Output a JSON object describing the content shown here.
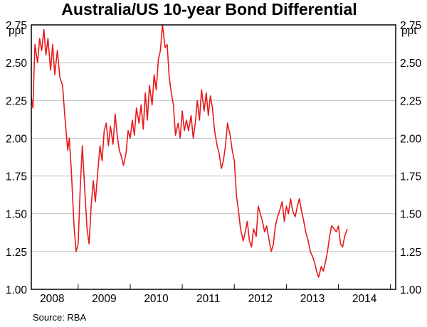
{
  "chart_data": {
    "type": "line",
    "title": "Australia/US 10-year Bond Differential",
    "unit_left": "ppt",
    "unit_right": "ppt",
    "source": "Source: RBA",
    "ylim": [
      1.0,
      2.75
    ],
    "yticks": [
      "1.00",
      "1.25",
      "1.50",
      "1.75",
      "2.00",
      "2.25",
      "2.50",
      "2.75"
    ],
    "xlim": [
      2007.6,
      2014.6
    ],
    "xticks": [
      "2008",
      "2009",
      "2010",
      "2011",
      "2012",
      "2013",
      "2014"
    ],
    "grid": true,
    "line_color": "#e8191b",
    "series": [
      {
        "x": [
          2007.6,
          2007.63,
          2007.67,
          2007.72,
          2007.76,
          2007.8,
          2007.84,
          2007.88,
          2007.92,
          2007.97,
          2008.01,
          2008.05,
          2008.1,
          2008.15,
          2008.2,
          2008.25,
          2008.3,
          2008.33,
          2008.37,
          2008.42,
          2008.46,
          2008.5,
          2008.54,
          2008.58,
          2008.62,
          2008.67,
          2008.71,
          2008.75,
          2008.79,
          2008.83,
          2008.87,
          2008.92,
          2008.96,
          2009.0,
          2009.04,
          2009.08,
          2009.12,
          2009.17,
          2009.21,
          2009.25,
          2009.29,
          2009.33,
          2009.37,
          2009.42,
          2009.46,
          2009.5,
          2009.54,
          2009.58,
          2009.62,
          2009.67,
          2009.71,
          2009.75,
          2009.79,
          2009.83,
          2009.87,
          2009.92,
          2009.96,
          2010.0,
          2010.04,
          2010.08,
          2010.12,
          2010.17,
          2010.21,
          2010.25,
          2010.29,
          2010.33,
          2010.37,
          2010.42,
          2010.46,
          2010.5,
          2010.54,
          2010.58,
          2010.62,
          2010.67,
          2010.71,
          2010.75,
          2010.79,
          2010.83,
          2010.87,
          2010.92,
          2010.96,
          2011.0,
          2011.04,
          2011.08,
          2011.12,
          2011.17,
          2011.21,
          2011.25,
          2011.29,
          2011.33,
          2011.37,
          2011.42,
          2011.46,
          2011.5,
          2011.54,
          2011.58,
          2011.62,
          2011.67,
          2011.71,
          2011.75,
          2011.79,
          2011.83,
          2011.87,
          2011.92,
          2011.96,
          2012.0,
          2012.04,
          2012.08,
          2012.12,
          2012.17,
          2012.21,
          2012.25,
          2012.29,
          2012.33,
          2012.37,
          2012.42,
          2012.46,
          2012.5,
          2012.54,
          2012.58,
          2012.62,
          2012.67,
          2012.71,
          2012.75,
          2012.79,
          2012.83,
          2012.87,
          2012.92,
          2012.96,
          2013.0,
          2013.04,
          2013.08,
          2013.12,
          2013.17,
          2013.21,
          2013.25,
          2013.29,
          2013.33,
          2013.37,
          2013.42,
          2013.46,
          2013.5,
          2013.54,
          2013.58,
          2013.62,
          2013.67
        ],
        "y": [
          2.27,
          2.2,
          2.62,
          2.5,
          2.66,
          2.58,
          2.72,
          2.55,
          2.66,
          2.45,
          2.62,
          2.42,
          2.58,
          2.4,
          2.35,
          2.12,
          1.92,
          2.0,
          1.78,
          1.42,
          1.25,
          1.3,
          1.68,
          1.95,
          1.7,
          1.4,
          1.3,
          1.55,
          1.72,
          1.58,
          1.75,
          1.95,
          1.85,
          2.05,
          2.1,
          1.95,
          2.08,
          1.96,
          2.16,
          2.02,
          1.92,
          1.88,
          1.82,
          1.9,
          2.05,
          2.0,
          2.12,
          2.02,
          2.2,
          2.1,
          2.22,
          2.06,
          2.3,
          2.12,
          2.35,
          2.22,
          2.42,
          2.32,
          2.52,
          2.58,
          2.75,
          2.6,
          2.62,
          2.4,
          2.3,
          2.22,
          2.02,
          2.1,
          2.0,
          2.18,
          2.05,
          2.12,
          2.05,
          2.15,
          2.0,
          2.1,
          2.25,
          2.12,
          2.32,
          2.18,
          2.3,
          2.15,
          2.28,
          2.2,
          2.05,
          1.95,
          1.9,
          1.8,
          1.85,
          1.95,
          2.1,
          2.02,
          1.92,
          1.85,
          1.62,
          1.52,
          1.4,
          1.32,
          1.38,
          1.45,
          1.32,
          1.28,
          1.4,
          1.35,
          1.55,
          1.5,
          1.45,
          1.38,
          1.42,
          1.32,
          1.25,
          1.3,
          1.42,
          1.48,
          1.52,
          1.58,
          1.45,
          1.55,
          1.5,
          1.6,
          1.52,
          1.48,
          1.55,
          1.6,
          1.52,
          1.46,
          1.38,
          1.32,
          1.25,
          1.22,
          1.18,
          1.12,
          1.08,
          1.15,
          1.12,
          1.18,
          1.25,
          1.35,
          1.42,
          1.4,
          1.38,
          1.42,
          1.3,
          1.28,
          1.35,
          1.4
        ]
      }
    ]
  }
}
